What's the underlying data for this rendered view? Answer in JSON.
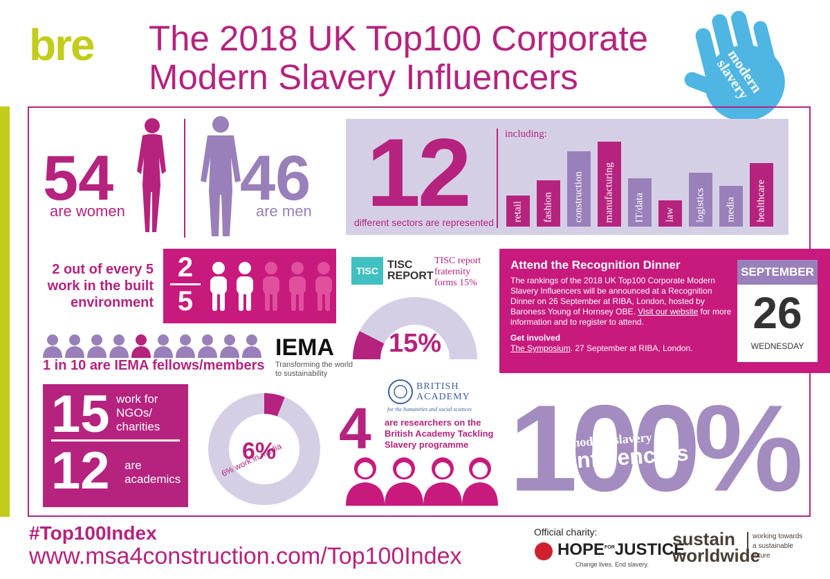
{
  "brand": {
    "logo": "bre"
  },
  "header": {
    "title_line1": "The 2018 UK Top100 Corporate",
    "title_line2": "Modern Slavery Influencers"
  },
  "hand_badge": {
    "line1": "modern",
    "line2": "slavery"
  },
  "gender": {
    "women_value": "54",
    "women_label": "are women",
    "men_value": "46",
    "men_label": "are men"
  },
  "sectors": {
    "value": "12",
    "label": "different sectors are represented",
    "including": "including:",
    "items": [
      {
        "name": "retail",
        "height": 0.32,
        "color": "#b5237e"
      },
      {
        "name": "fashion",
        "height": 0.48,
        "color": "#b5237e"
      },
      {
        "name": "construction",
        "height": 0.78,
        "color": "#9a80ba"
      },
      {
        "name": "manufacturing",
        "height": 0.88,
        "color": "#b5237e"
      },
      {
        "name": "IT/data",
        "height": 0.5,
        "color": "#9a80ba"
      },
      {
        "name": "law",
        "height": 0.27,
        "color": "#b5237e"
      },
      {
        "name": "logistics",
        "height": 0.56,
        "color": "#9a80ba"
      },
      {
        "name": "media",
        "height": 0.42,
        "color": "#9a80ba"
      },
      {
        "name": "healthcare",
        "height": 0.66,
        "color": "#b5237e"
      }
    ]
  },
  "built_env": {
    "text_line1": "2 out of every 5",
    "text_line2": "work in the built",
    "text_line3": "environment",
    "numerator": "2",
    "denominator": "5"
  },
  "iema": {
    "text": "1 in 10 are IEMA fellows/members",
    "logo": "IEMA",
    "tagline_line1": "Transforming the world",
    "tagline_line2": "to sustainability"
  },
  "tisc": {
    "logo_small": "TISC",
    "logo_line1": "TISC",
    "logo_line2": "REPORT",
    "note_line1": "TISC report",
    "note_line2": "fraternity",
    "note_line3": "forms 15%",
    "percent": "15%",
    "fraction": 0.15
  },
  "dinner": {
    "title": "Attend the Recognition Dinner",
    "body": "The rankings of the 2018 UK Top100 Corporate Modern Slavery Influencers will be announced at a Recognition Dinner on 26 September at RIBA, London, hosted by Baroness Young of Hornsey OBE.",
    "link": "Visit our website",
    "body2": " for more information and to register to attend.",
    "get_involved": "Get involved",
    "symposium_link": "The Symposium",
    "symposium_text": ". 27 September at RIBA, London."
  },
  "calendar": {
    "month": "SEPTEMBER",
    "day": "26",
    "weekday": "WEDNESDAY"
  },
  "ngo": {
    "value": "15",
    "label_line1": "work for",
    "label_line2": "NGOs/",
    "label_line3": "charities"
  },
  "academics": {
    "value": "12",
    "label_line1": "are",
    "label_line2": "academics"
  },
  "media": {
    "percent": "6%",
    "caption": "6% work in media",
    "fraction": 0.06
  },
  "british_academy": {
    "logo_line1": "BRITISH",
    "logo_line2": "ACADEMY",
    "logo_tagline": "for the humanities and social sciences",
    "value": "4",
    "text_line1": "are researchers on the",
    "text_line2": "British Academy Tackling",
    "text_line3": "Slavery programme"
  },
  "hundred": {
    "big": "100%",
    "line1": "modern slavery",
    "line2": "influencers"
  },
  "footer": {
    "hashtag": "#Top100Index",
    "url": "www.msa4construction.com/Top100Index",
    "charity_label": "Official charity:",
    "hope_logo_a": "HOPE",
    "hope_logo_for": "FOR",
    "hope_logo_b": "JUSTICE",
    "hope_tagline": "Change lives. End slavery.",
    "sustain_line1": "sustain",
    "sustain_line2": "worldwide",
    "sustain_tag1": "working towards",
    "sustain_tag2": "a sustainable",
    "sustain_tag3": "future"
  },
  "colors": {
    "magenta": "#b5237e",
    "lilac": "#9a80ba",
    "lime": "#c2cc1a",
    "pink": "#c81a7d",
    "sky": "#4fb5e3"
  }
}
